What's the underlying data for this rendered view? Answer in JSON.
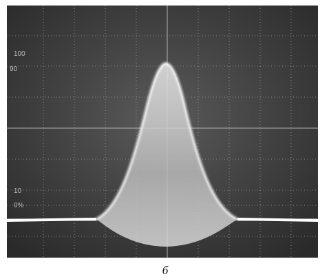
{
  "graticule_labels": [
    "100",
    "90",
    "10",
    "0%"
  ],
  "caption": "б"
}
